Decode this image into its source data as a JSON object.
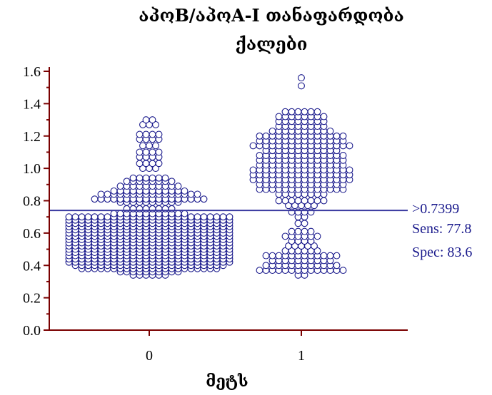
{
  "chart_data": {
    "type": "scatter",
    "subtype": "dot-plot",
    "title": "აპოB/აპოA-I თანაფარდობა",
    "subtitle": "ქალები",
    "xlabel": "მეტს",
    "ylabel": "",
    "categories": [
      "0",
      "1"
    ],
    "ylim": [
      0.0,
      1.6
    ],
    "yticks": [
      "0.0",
      "0.2",
      "0.4",
      "0.6",
      "0.8",
      "1.0",
      "1.2",
      "1.4",
      "1.6"
    ],
    "grid": false,
    "cutoff": {
      "value": 0.7399,
      "label": ">0.7399",
      "sens_label": "Sens: 77.8",
      "spec_label": "Spec: 83.6"
    },
    "groups": [
      {
        "category": "0",
        "bins": [
          {
            "y": 0.34,
            "n": 6
          },
          {
            "y": 0.36,
            "n": 10
          },
          {
            "y": 0.38,
            "n": 22
          },
          {
            "y": 0.4,
            "n": 24
          },
          {
            "y": 0.42,
            "n": 26
          },
          {
            "y": 0.44,
            "n": 26
          },
          {
            "y": 0.46,
            "n": 26
          },
          {
            "y": 0.48,
            "n": 26
          },
          {
            "y": 0.5,
            "n": 26
          },
          {
            "y": 0.52,
            "n": 26
          },
          {
            "y": 0.54,
            "n": 26
          },
          {
            "y": 0.56,
            "n": 26
          },
          {
            "y": 0.58,
            "n": 26
          },
          {
            "y": 0.6,
            "n": 26
          },
          {
            "y": 0.62,
            "n": 26
          },
          {
            "y": 0.64,
            "n": 26
          },
          {
            "y": 0.66,
            "n": 26
          },
          {
            "y": 0.68,
            "n": 26
          },
          {
            "y": 0.7,
            "n": 26
          },
          {
            "y": 0.72,
            "n": 12
          },
          {
            "y": 0.75,
            "n": 8
          },
          {
            "y": 0.79,
            "n": 10
          },
          {
            "y": 0.81,
            "n": 18
          },
          {
            "y": 0.84,
            "n": 16
          },
          {
            "y": 0.86,
            "n": 12
          },
          {
            "y": 0.89,
            "n": 10
          },
          {
            "y": 0.92,
            "n": 8
          },
          {
            "y": 0.94,
            "n": 6
          },
          {
            "y": 1.0,
            "n": 3
          },
          {
            "y": 1.03,
            "n": 4
          },
          {
            "y": 1.07,
            "n": 4
          },
          {
            "y": 1.1,
            "n": 4
          },
          {
            "y": 1.14,
            "n": 3
          },
          {
            "y": 1.18,
            "n": 4
          },
          {
            "y": 1.21,
            "n": 4
          },
          {
            "y": 1.27,
            "n": 3
          },
          {
            "y": 1.3,
            "n": 2
          }
        ]
      },
      {
        "category": "1",
        "bins": [
          {
            "y": 0.34,
            "n": 2
          },
          {
            "y": 0.37,
            "n": 14
          },
          {
            "y": 0.4,
            "n": 12
          },
          {
            "y": 0.43,
            "n": 10
          },
          {
            "y": 0.46,
            "n": 12
          },
          {
            "y": 0.49,
            "n": 6
          },
          {
            "y": 0.52,
            "n": 5
          },
          {
            "y": 0.55,
            "n": 4
          },
          {
            "y": 0.58,
            "n": 6
          },
          {
            "y": 0.61,
            "n": 4
          },
          {
            "y": 0.66,
            "n": 2
          },
          {
            "y": 0.7,
            "n": 2
          },
          {
            "y": 0.73,
            "n": 4
          },
          {
            "y": 0.77,
            "n": 5
          },
          {
            "y": 0.8,
            "n": 8
          },
          {
            "y": 0.84,
            "n": 8
          },
          {
            "y": 0.87,
            "n": 14
          },
          {
            "y": 0.9,
            "n": 14
          },
          {
            "y": 0.93,
            "n": 16
          },
          {
            "y": 0.96,
            "n": 16
          },
          {
            "y": 0.99,
            "n": 16
          },
          {
            "y": 1.02,
            "n": 14
          },
          {
            "y": 1.05,
            "n": 14
          },
          {
            "y": 1.08,
            "n": 14
          },
          {
            "y": 1.11,
            "n": 12
          },
          {
            "y": 1.14,
            "n": 16
          },
          {
            "y": 1.17,
            "n": 14
          },
          {
            "y": 1.2,
            "n": 14
          },
          {
            "y": 1.23,
            "n": 10
          },
          {
            "y": 1.26,
            "n": 8
          },
          {
            "y": 1.29,
            "n": 8
          },
          {
            "y": 1.32,
            "n": 8
          },
          {
            "y": 1.35,
            "n": 6
          },
          {
            "y": 1.51,
            "n": 1
          },
          {
            "y": 1.56,
            "n": 1
          }
        ]
      }
    ]
  },
  "colors": {
    "axis": "#7a0000",
    "marker": "#1a1a8c",
    "cutoff_line": "#3a3aa0",
    "text": "#000000"
  }
}
